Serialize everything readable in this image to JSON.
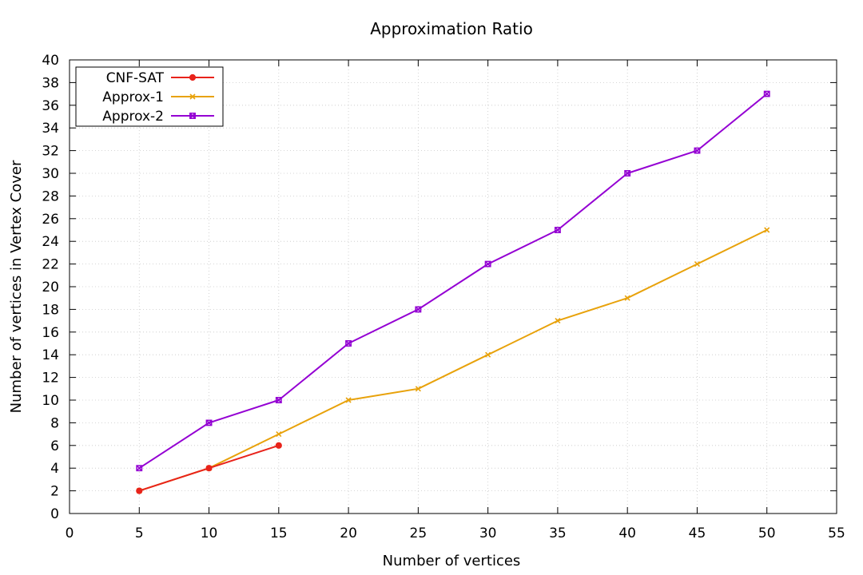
{
  "chart_data": {
    "type": "line",
    "title": "Approximation Ratio",
    "xlabel": "Number of vertices",
    "ylabel": "Number of vertices in Vertex Cover",
    "xlim": [
      0,
      55
    ],
    "ylim": [
      0,
      40
    ],
    "x_ticks": [
      0,
      5,
      10,
      15,
      20,
      25,
      30,
      35,
      40,
      45,
      50,
      55
    ],
    "y_ticks": [
      0,
      2,
      4,
      6,
      8,
      10,
      12,
      14,
      16,
      18,
      20,
      22,
      24,
      26,
      28,
      30,
      32,
      34,
      36,
      38,
      40
    ],
    "grid": true,
    "legend_position": "top-left",
    "series": [
      {
        "name": "CNF-SAT",
        "color": "#e8231b",
        "marker": "circle",
        "x": [
          5,
          10,
          15
        ],
        "y": [
          2,
          4,
          6
        ]
      },
      {
        "name": "Approx-1",
        "color": "#e8a20b",
        "marker": "cross",
        "x": [
          5,
          10,
          15,
          20,
          25,
          30,
          35,
          40,
          45,
          50
        ],
        "y": [
          2,
          4,
          7,
          10,
          11,
          14,
          17,
          19,
          22,
          25
        ]
      },
      {
        "name": "Approx-2",
        "color": "#9400d3",
        "marker": "box-cross",
        "x": [
          5,
          10,
          15,
          20,
          25,
          30,
          35,
          40,
          45,
          50
        ],
        "y": [
          4,
          8,
          10,
          15,
          18,
          22,
          25,
          30,
          32,
          37
        ]
      }
    ]
  }
}
